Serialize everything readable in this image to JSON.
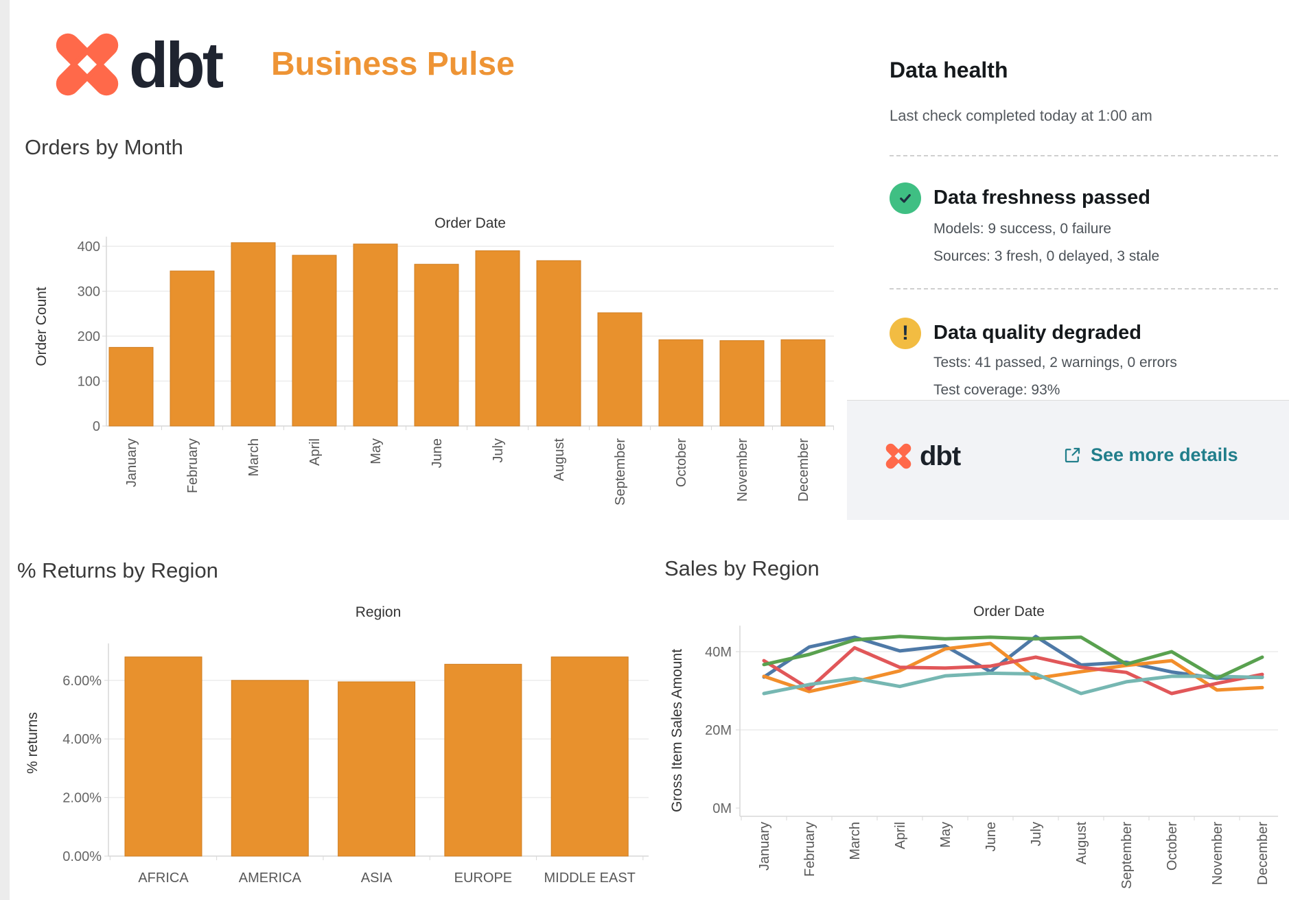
{
  "header": {
    "brand": "dbt",
    "title": "Business Pulse"
  },
  "icons": {
    "success": "check-icon",
    "warning": "exclamation-icon",
    "external": "external-link-icon",
    "warning_glyph": "!"
  },
  "colors": {
    "bar_orange": "#E8912D",
    "brand_coral": "#FF694A",
    "brand_dark": "#1F2430",
    "title_orange": "#EE9435",
    "link_teal": "#217E8B",
    "success_green": "#3FBF83",
    "warning_yellow": "#F2BC42",
    "grid_gray": "#ececec",
    "axis_gray": "#d7d7d7"
  },
  "data_health": {
    "title": "Data health",
    "last_check": "Last check completed today at 1:00 am",
    "freshness": {
      "title": "Data freshness passed",
      "models": "Models: 9 success, 0 failure",
      "sources": "Sources: 3 fresh, 0 delayed, 3 stale"
    },
    "quality": {
      "title": "Data quality degraded",
      "tests": "Tests: 41 passed, 2 warnings, 0 errors",
      "coverage": "Test coverage: 93%"
    },
    "footer": {
      "brand": "dbt",
      "link_label": "See more details"
    }
  },
  "chart_data": [
    {
      "id": "orders_by_month",
      "type": "bar",
      "title": "Orders by Month",
      "pane_title": "Order Date",
      "xlabel": "Order Date",
      "ylabel": "Order Count",
      "categories": [
        "January",
        "February",
        "March",
        "April",
        "May",
        "June",
        "July",
        "August",
        "September",
        "October",
        "November",
        "December"
      ],
      "values": [
        175,
        345,
        408,
        380,
        405,
        360,
        390,
        368,
        252,
        192,
        190,
        192
      ],
      "ylim": [
        0,
        420
      ],
      "yticks": [
        0,
        100,
        200,
        300,
        400
      ],
      "ytick_labels": [
        "0",
        "100",
        "200",
        "300",
        "400"
      ],
      "grid": true,
      "legend": "none",
      "bar_color": "#E8912D"
    },
    {
      "id": "returns_by_region",
      "type": "bar",
      "title": "% Returns by Region",
      "pane_title": "Region",
      "xlabel": "Region",
      "ylabel": "% returns",
      "categories": [
        "AFRICA",
        "AMERICA",
        "ASIA",
        "EUROPE",
        "MIDDLE EAST"
      ],
      "values": [
        6.8,
        6.0,
        5.95,
        6.55,
        6.8
      ],
      "ylim": [
        0,
        7.3
      ],
      "yticks": [
        0,
        2,
        4,
        6
      ],
      "ytick_labels": [
        "0.00%",
        "2.00%",
        "4.00%",
        "6.00%"
      ],
      "grid": true,
      "legend": "none",
      "bar_color": "#E8912D"
    },
    {
      "id": "sales_by_region",
      "type": "line",
      "title": "Sales by Region",
      "pane_title": "Order Date",
      "xlabel": "Order Date",
      "ylabel": "Gross Item Sales Amount",
      "unit": "millions",
      "categories": [
        "January",
        "February",
        "March",
        "April",
        "May",
        "June",
        "July",
        "August",
        "September",
        "October",
        "November",
        "December"
      ],
      "yticks": [
        0,
        20,
        40
      ],
      "ytick_labels": [
        "0M",
        "20M",
        "40M"
      ],
      "ylim": [
        0,
        47
      ],
      "grid": true,
      "legend": "none",
      "series": [
        {
          "name": "blue",
          "color": "#4E79A7",
          "values": [
            33.5,
            41.2,
            43.7,
            40.2,
            41.5,
            34.9,
            43.9,
            36.6,
            37.3,
            34.8,
            33.2,
            33.5
          ]
        },
        {
          "name": "orange",
          "color": "#F28E2B",
          "values": [
            33.7,
            29.8,
            32.3,
            35.1,
            40.7,
            42.1,
            33.2,
            34.9,
            36.5,
            37.7,
            30.2,
            30.8
          ]
        },
        {
          "name": "red",
          "color": "#E15759",
          "values": [
            37.7,
            30.5,
            41.0,
            36.0,
            35.8,
            36.3,
            38.6,
            36.0,
            34.7,
            29.3,
            31.9,
            34.2
          ]
        },
        {
          "name": "teal",
          "color": "#76B7B2",
          "values": [
            29.3,
            31.6,
            33.2,
            31.1,
            33.8,
            34.5,
            34.3,
            29.3,
            32.3,
            33.7,
            33.7,
            33.4
          ]
        },
        {
          "name": "green",
          "color": "#59A14F",
          "values": [
            36.7,
            39.3,
            43.0,
            43.9,
            43.3,
            43.7,
            43.3,
            43.7,
            36.8,
            40.0,
            33.2,
            38.6
          ]
        }
      ]
    }
  ]
}
